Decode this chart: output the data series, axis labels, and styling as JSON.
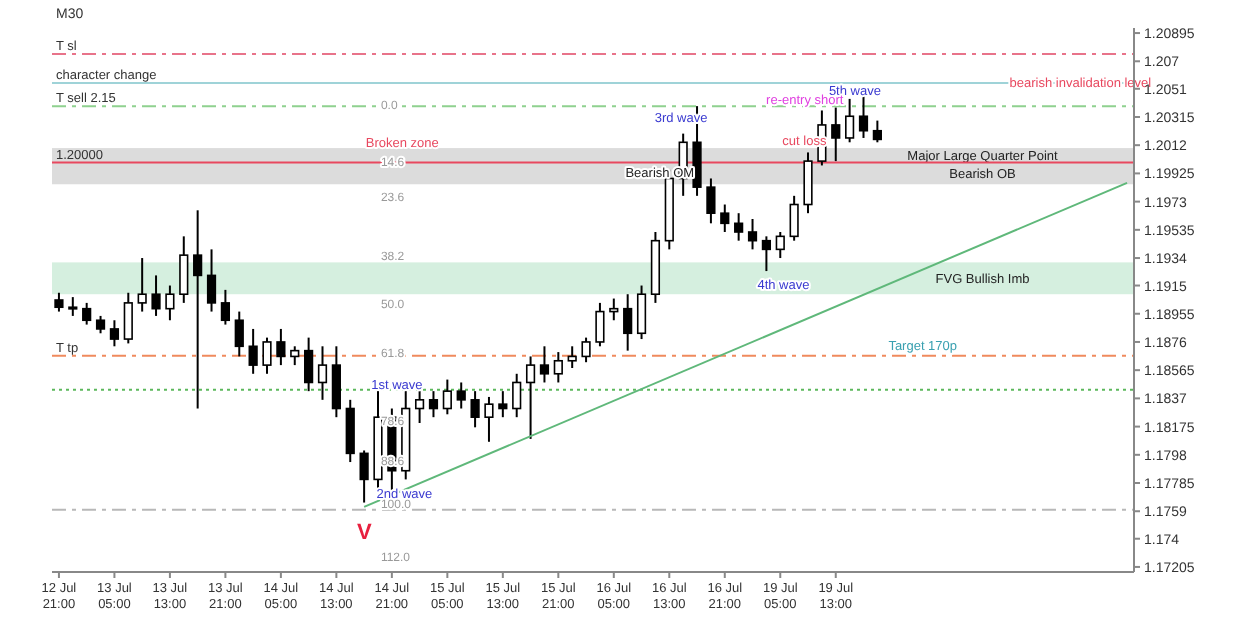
{
  "chart_data": {
    "type": "candlestick",
    "title": "M30",
    "grid": false,
    "categories": [
      "12 Jul 21:00",
      null,
      null,
      null,
      "13 Jul 05:00",
      null,
      null,
      null,
      "13 Jul 13:00",
      null,
      null,
      null,
      "13 Jul 21:00",
      null,
      null,
      null,
      "14 Jul 05:00",
      null,
      null,
      null,
      "14 Jul 13:00",
      null,
      null,
      null,
      "14 Jul 21:00",
      null,
      null,
      null,
      "15 Jul 05:00",
      null,
      null,
      null,
      "15 Jul 13:00",
      null,
      null,
      null,
      "15 Jul 21:00",
      null,
      null,
      null,
      "16 Jul 05:00",
      null,
      null,
      null,
      "16 Jul 13:00",
      null,
      null,
      null,
      "16 Jul 21:00",
      null,
      null,
      null,
      "19 Jul 05:00",
      null,
      null,
      null,
      "19 Jul 13:00",
      null,
      null,
      null,
      null,
      null,
      null,
      null,
      null,
      null,
      null,
      null,
      null,
      null,
      null,
      null,
      null,
      null,
      null,
      null,
      null,
      null
    ],
    "ylim": [
      1.1717,
      1.2093
    ],
    "yticks": [
      1.17205,
      1.174,
      1.1759,
      1.17785,
      1.1798,
      1.18175,
      1.1837,
      1.18565,
      1.1876,
      1.18955,
      1.1915,
      1.1934,
      1.19535,
      1.1973,
      1.19925,
      1.2012,
      1.20315,
      1.2051,
      1.207,
      1.20895
    ],
    "series": [
      {
        "color": "#000000",
        "ohlc": [
          [
            1.1905,
            1.191,
            1.1897,
            1.19
          ],
          [
            1.19,
            1.1907,
            1.1894,
            1.1899
          ],
          [
            1.1899,
            1.1903,
            1.1888,
            1.1891
          ],
          [
            1.1891,
            1.1894,
            1.1882,
            1.1885
          ],
          [
            1.1885,
            1.1891,
            1.1873,
            1.1878
          ],
          [
            1.1878,
            1.191,
            1.1875,
            1.1903
          ],
          [
            1.1903,
            1.1934,
            1.1897,
            1.1909
          ],
          [
            1.1909,
            1.1922,
            1.1894,
            1.1899
          ],
          [
            1.1899,
            1.1915,
            1.1891,
            1.1909
          ],
          [
            1.1909,
            1.1949,
            1.1903,
            1.1936
          ],
          [
            1.1936,
            1.1967,
            1.183,
            1.1922
          ],
          [
            1.1922,
            1.194,
            1.1897,
            1.1903
          ],
          [
            1.1903,
            1.1912,
            1.1888,
            1.1891
          ],
          [
            1.1891,
            1.1897,
            1.1866,
            1.1873
          ],
          [
            1.1873,
            1.1885,
            1.1854,
            1.186
          ],
          [
            1.186,
            1.1879,
            1.1854,
            1.1876
          ],
          [
            1.1876,
            1.1885,
            1.186,
            1.1866
          ],
          [
            1.1866,
            1.1873,
            1.186,
            1.187
          ],
          [
            1.187,
            1.1879,
            1.1842,
            1.1848
          ],
          [
            1.1848,
            1.1873,
            1.1836,
            1.186
          ],
          [
            1.186,
            1.1873,
            1.1824,
            1.183
          ],
          [
            1.183,
            1.1836,
            1.1793,
            1.1799
          ],
          [
            1.1799,
            1.1801,
            1.1765,
            1.1781
          ],
          [
            1.1781,
            1.1842,
            1.1774,
            1.1824
          ],
          [
            1.1824,
            1.183,
            1.1772,
            1.1787
          ],
          [
            1.1787,
            1.1842,
            1.1781,
            1.183
          ],
          [
            1.183,
            1.1842,
            1.182,
            1.1836
          ],
          [
            1.1836,
            1.1842,
            1.1824,
            1.183
          ],
          [
            1.183,
            1.185,
            1.1826,
            1.1842
          ],
          [
            1.1842,
            1.1848,
            1.183,
            1.1836
          ],
          [
            1.1836,
            1.1842,
            1.1817,
            1.1824
          ],
          [
            1.1824,
            1.1838,
            1.1807,
            1.1833
          ],
          [
            1.1833,
            1.1842,
            1.1824,
            1.183
          ],
          [
            1.183,
            1.1854,
            1.1824,
            1.1848
          ],
          [
            1.1848,
            1.1866,
            1.1809,
            1.186
          ],
          [
            1.186,
            1.1873,
            1.1848,
            1.1854
          ],
          [
            1.1854,
            1.1869,
            1.1848,
            1.1863
          ],
          [
            1.1863,
            1.1873,
            1.1858,
            1.1866
          ],
          [
            1.1866,
            1.1879,
            1.1862,
            1.1876
          ],
          [
            1.1876,
            1.1903,
            1.1873,
            1.1897
          ],
          [
            1.1897,
            1.1906,
            1.1891,
            1.1899
          ],
          [
            1.1899,
            1.1909,
            1.187,
            1.1882
          ],
          [
            1.1882,
            1.1915,
            1.1878,
            1.1909
          ],
          [
            1.1909,
            1.1952,
            1.1903,
            1.1946
          ],
          [
            1.1946,
            1.1995,
            1.194,
            1.1989
          ],
          [
            1.1989,
            1.202,
            1.1977,
            1.2014
          ],
          [
            1.2014,
            1.2039,
            1.1977,
            1.1983
          ],
          [
            1.1983,
            1.1989,
            1.1958,
            1.1965
          ],
          [
            1.1965,
            1.1971,
            1.1952,
            1.1958
          ],
          [
            1.1958,
            1.1965,
            1.1946,
            1.1952
          ],
          [
            1.1952,
            1.1961,
            1.194,
            1.1946
          ],
          [
            1.1946,
            1.1949,
            1.1925,
            1.194
          ],
          [
            1.194,
            1.1952,
            1.1934,
            1.1949
          ],
          [
            1.1949,
            1.1977,
            1.1946,
            1.1971
          ],
          [
            1.1971,
            1.2007,
            1.1965,
            1.2001
          ],
          [
            1.2001,
            1.2036,
            1.1998,
            1.2026
          ],
          [
            1.2026,
            1.2038,
            1.2001,
            1.2017
          ],
          [
            1.2017,
            1.2044,
            1.2014,
            1.2032
          ],
          [
            1.2032,
            1.205,
            1.2017,
            1.2022
          ],
          [
            1.2022,
            1.2029,
            1.2014,
            1.2016
          ],
          null,
          null,
          null,
          null,
          null,
          null,
          null,
          null,
          null,
          null,
          null,
          null,
          null,
          null,
          null,
          null,
          null,
          null
        ]
      },
      {
        "type": "line",
        "color": "#5fb87a",
        "values": [
          null,
          null,
          null,
          null,
          null,
          null,
          null,
          null,
          null,
          null,
          null,
          null,
          null,
          null,
          null,
          null,
          null,
          null,
          null,
          null,
          null,
          null,
          1.1762,
          null,
          null,
          null,
          null,
          null,
          null,
          null,
          null,
          null,
          null,
          null,
          null,
          null,
          null,
          null,
          null,
          null,
          null,
          null,
          null,
          null,
          null,
          null,
          null,
          null,
          null,
          null,
          null,
          null,
          null,
          null,
          null,
          null,
          null,
          null,
          null,
          null,
          null,
          null,
          null,
          null,
          null,
          null,
          null,
          null,
          null,
          null,
          null,
          null,
          null,
          null,
          null,
          null,
          null,
          1.1986
        ]
      }
    ],
    "ref_lines": [
      {
        "axis": "y",
        "value": 1.2075,
        "label": "T sl",
        "color": "#e8738a",
        "line_style": "dashed"
      },
      {
        "axis": "y",
        "value": 1.2055,
        "label": "character change",
        "color": "#9fd3d8",
        "line_style": "solid"
      },
      {
        "axis": "y",
        "value": 1.2039,
        "label": "T sell 2.15",
        "color": "#8fd18f",
        "line_style": "dashed"
      },
      {
        "axis": "y",
        "value": 1.2,
        "label": "1.20000",
        "color": "#e8485f",
        "line_style": "solid"
      },
      {
        "axis": "y",
        "value": 1.18665,
        "label": "T tp",
        "color": "#f08a5d",
        "line_style": "dashed"
      },
      {
        "axis": "y",
        "value": 1.1843,
        "color": "#5cb85c",
        "line_style": "dotted"
      },
      {
        "axis": "y",
        "value": 1.176,
        "color": "#b8b8b8",
        "line_style": "dashed"
      }
    ],
    "bands": [
      {
        "axis": "y",
        "from": 1.2,
        "to": 1.201,
        "label": "Major Large Quarter Point",
        "color": "#dcdcdc"
      },
      {
        "axis": "y",
        "from": 1.1985,
        "to": 1.2,
        "label": "Bearish OB",
        "color": "#dcdcdc"
      },
      {
        "axis": "y",
        "from": 1.1909,
        "to": 1.1931,
        "label": "FVG Bullish Imb",
        "color": "#d5efdf"
      }
    ],
    "annotations": [
      "bearish invalidation level",
      "Broken zone",
      "Bearish OM",
      "1st wave",
      "2nd wave",
      "3rd wave",
      "4th wave",
      "5th wave",
      "re-entry short",
      "cut loss",
      "Target 170p",
      "V",
      "0.0",
      "14.6",
      "23.6",
      "38.2",
      "50.0",
      "61.8",
      "78.6",
      "88.6",
      "100.0",
      "112.0"
    ]
  }
}
